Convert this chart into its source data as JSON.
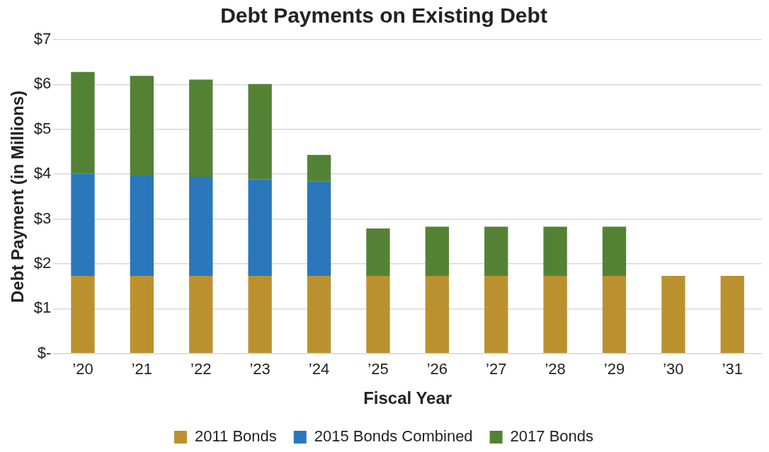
{
  "chart_data": {
    "type": "bar",
    "title": "Debt Payments on Existing Debt",
    "xlabel": "Fiscal Year",
    "ylabel": "Debt Payment (in Millions)",
    "categories": [
      "’20",
      "’21",
      "’22",
      "’23",
      "’24",
      "’25",
      "’26",
      "’27",
      "’28",
      "’29",
      "’30",
      "’31"
    ],
    "stacked": true,
    "series": [
      {
        "name": "2011 Bonds",
        "color": "#bb9130",
        "values": [
          1.73,
          1.73,
          1.73,
          1.73,
          1.73,
          1.73,
          1.73,
          1.73,
          1.73,
          1.73,
          1.73,
          1.73
        ]
      },
      {
        "name": "2015 Bonds Combined",
        "color": "#2a77bb",
        "values": [
          2.28,
          2.24,
          2.21,
          2.15,
          2.11,
          null,
          null,
          null,
          null,
          null,
          null,
          null
        ]
      },
      {
        "name": "2017 Bonds",
        "color": "#548235",
        "values": [
          2.27,
          2.22,
          2.17,
          2.13,
          0.59,
          1.06,
          1.1,
          1.1,
          1.1,
          1.1,
          null,
          null
        ]
      }
    ],
    "ylim": [
      0,
      7
    ],
    "yticks": [
      {
        "value": 0,
        "label": "$-"
      },
      {
        "value": 1,
        "label": "$1"
      },
      {
        "value": 2,
        "label": "$2"
      },
      {
        "value": 3,
        "label": "$3"
      },
      {
        "value": 4,
        "label": "$4"
      },
      {
        "value": 5,
        "label": "$5"
      },
      {
        "value": 6,
        "label": "$6"
      },
      {
        "value": 7,
        "label": "$7"
      }
    ],
    "grid": "y",
    "legend": "bottom"
  }
}
